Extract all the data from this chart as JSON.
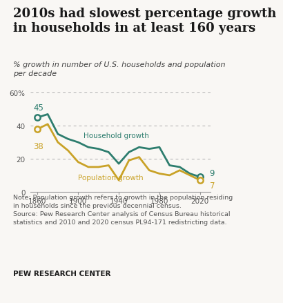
{
  "title": "2010s had slowest percentage growth\nin households in at least 160 years",
  "subtitle": "% growth in number of U.S. households and population\nper decade",
  "note": "Note: Population growth refers to growth in the population residing\nin households since the previous decennial census.\nSource: Pew Research Center analysis of Census Bureau historical\nstatistics and 2010 and 2020 census PL94-171 redistricting data.",
  "footer": "PEW RESEARCH CENTER",
  "household_years": [
    1860,
    1870,
    1880,
    1890,
    1900,
    1910,
    1920,
    1930,
    1940,
    1950,
    1960,
    1970,
    1980,
    1990,
    2000,
    2010,
    2020
  ],
  "household_values": [
    45,
    47,
    35,
    32,
    30,
    27,
    26,
    24,
    17,
    24,
    27,
    26,
    27,
    16,
    15,
    11,
    9
  ],
  "population_years": [
    1860,
    1870,
    1880,
    1890,
    1900,
    1910,
    1920,
    1930,
    1940,
    1950,
    1960,
    1970,
    1980,
    1990,
    2000,
    2010,
    2020
  ],
  "population_values": [
    38,
    41,
    30,
    25,
    18,
    15,
    15,
    16,
    7,
    19,
    21,
    13,
    11,
    10,
    13,
    10,
    7
  ],
  "household_color": "#2d7d6e",
  "population_color": "#c9a227",
  "ylim": [
    0,
    65
  ],
  "yticks": [
    0,
    20,
    40,
    60
  ],
  "background_color": "#f9f7f4",
  "grid_color": "#aaaaaa",
  "title_fontsize": 13.0,
  "subtitle_fontsize": 8.0,
  "note_fontsize": 6.8,
  "footer_fontsize": 7.5
}
